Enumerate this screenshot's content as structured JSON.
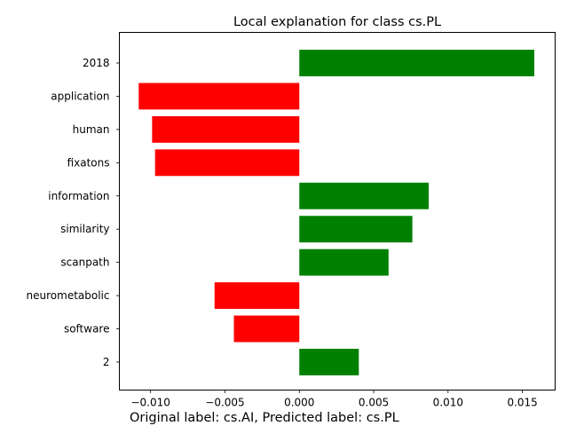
{
  "chart_data": {
    "type": "bar",
    "orientation": "horizontal",
    "title": "Local explanation for class cs.PL",
    "caption": "Original label: cs.AI, Predicted label: cs.PL",
    "categories": [
      "2018",
      "application",
      "human",
      "fixatons",
      "information",
      "similarity",
      "scanpath",
      "neurometabolic",
      "software",
      "2"
    ],
    "values": [
      0.0158,
      -0.0108,
      -0.0099,
      -0.0097,
      0.0087,
      0.0076,
      0.006,
      -0.0057,
      -0.0044,
      0.004
    ],
    "xlim": [
      -0.0121,
      0.0172
    ],
    "xticks": [
      -0.01,
      -0.005,
      0.0,
      0.005,
      0.01,
      0.015
    ],
    "xtick_labels": [
      "−0.010",
      "−0.005",
      "0.000",
      "0.005",
      "0.010",
      "0.015"
    ],
    "positive_color": "#008000",
    "negative_color": "#ff0000",
    "grid": false,
    "legend": "none"
  }
}
